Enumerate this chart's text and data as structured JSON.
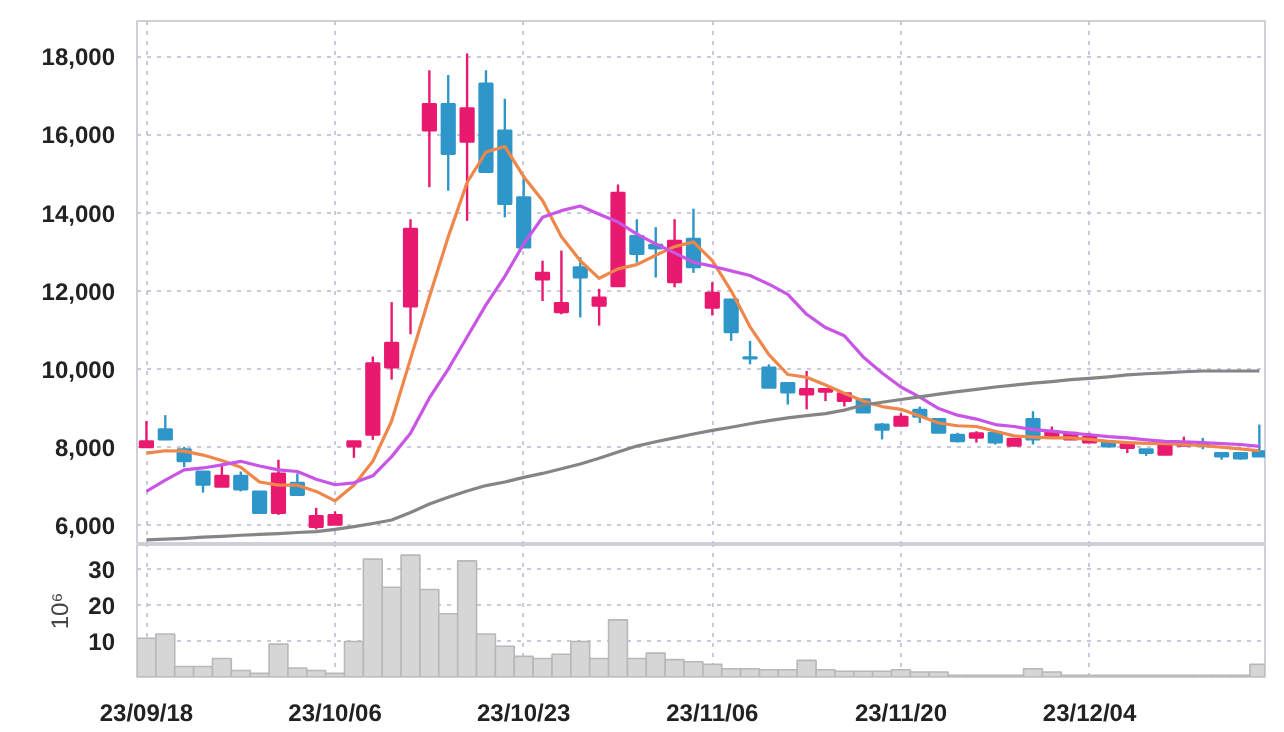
{
  "chart_data": [
    {
      "type": "candlestick",
      "categories": [
        null,
        null,
        null,
        null,
        null,
        null,
        null,
        null,
        null,
        null,
        null,
        null,
        null,
        null,
        null,
        null,
        null,
        null,
        null,
        null,
        null,
        null,
        null,
        null,
        null,
        null,
        null,
        null,
        null,
        null,
        null,
        null,
        null,
        null,
        null,
        null,
        null,
        null,
        null,
        null,
        null,
        null,
        null,
        null,
        null,
        null,
        null,
        null,
        null,
        null,
        null,
        null,
        null,
        null,
        null,
        null,
        null,
        null,
        null,
        null
      ],
      "ohlc": [
        [
          8000,
          8670,
          8000,
          8150
        ],
        [
          8460,
          8820,
          8180,
          8200
        ],
        [
          7950,
          8010,
          7490,
          7640
        ],
        [
          7380,
          7380,
          6840,
          7040
        ],
        [
          6990,
          7550,
          6990,
          7270
        ],
        [
          7270,
          7380,
          6870,
          6920
        ],
        [
          6870,
          6870,
          6320,
          6320
        ],
        [
          6320,
          7680,
          6270,
          7330
        ],
        [
          7090,
          7330,
          6780,
          6780
        ],
        [
          5960,
          6450,
          5900,
          6240
        ],
        [
          6020,
          6360,
          6020,
          6270
        ],
        [
          8020,
          8150,
          7730,
          8150
        ],
        [
          8320,
          10320,
          8190,
          10150
        ],
        [
          10040,
          11710,
          9730,
          10670
        ],
        [
          11600,
          13830,
          10890,
          13590
        ],
        [
          16100,
          17640,
          14650,
          16780
        ],
        [
          16780,
          17520,
          14560,
          15500
        ],
        [
          15810,
          18070,
          13790,
          16670
        ],
        [
          17300,
          17640,
          15040,
          15040
        ],
        [
          16100,
          16910,
          13880,
          14220
        ],
        [
          14390,
          14960,
          13100,
          13110
        ],
        [
          12290,
          12770,
          11740,
          12460
        ],
        [
          11450,
          13030,
          11400,
          11690
        ],
        [
          12600,
          12860,
          11320,
          12340
        ],
        [
          11620,
          12050,
          11110,
          11830
        ],
        [
          12120,
          14720,
          12120,
          14510
        ],
        [
          13400,
          13830,
          12720,
          12940
        ],
        [
          13180,
          13630,
          12340,
          13080
        ],
        [
          12220,
          13830,
          12090,
          13280
        ],
        [
          13330,
          14100,
          12460,
          12600
        ],
        [
          11570,
          12220,
          11370,
          11950
        ],
        [
          11780,
          11780,
          10720,
          10940
        ],
        [
          10300,
          10720,
          10120,
          10270
        ],
        [
          10040,
          10120,
          9520,
          9520
        ],
        [
          9640,
          9640,
          9090,
          9400
        ],
        [
          9350,
          9950,
          8970,
          9490
        ],
        [
          9420,
          9490,
          9180,
          9490
        ],
        [
          9180,
          9380,
          9040,
          9380
        ],
        [
          9230,
          9230,
          8890,
          8890
        ],
        [
          8580,
          8620,
          8200,
          8450
        ],
        [
          8550,
          8870,
          8530,
          8780
        ],
        [
          8960,
          9040,
          8620,
          8780
        ],
        [
          8720,
          8720,
          8370,
          8370
        ],
        [
          8320,
          8370,
          8120,
          8150
        ],
        [
          8240,
          8410,
          8120,
          8360
        ],
        [
          8370,
          8370,
          8070,
          8120
        ],
        [
          8040,
          8220,
          8040,
          8220
        ],
        [
          8720,
          8920,
          8070,
          8200
        ],
        [
          8270,
          8530,
          8270,
          8410
        ],
        [
          8200,
          8370,
          8200,
          8370
        ],
        [
          8120,
          8370,
          8120,
          8270
        ],
        [
          8150,
          8150,
          8020,
          8020
        ],
        [
          7980,
          8100,
          7850,
          8100
        ],
        [
          7950,
          7950,
          7780,
          7850
        ],
        [
          7810,
          8070,
          7810,
          8070
        ],
        [
          8040,
          8270,
          8040,
          8120
        ],
        [
          8060,
          8240,
          7950,
          8040
        ],
        [
          7850,
          7850,
          7680,
          7760
        ],
        [
          7850,
          7850,
          7680,
          7710
        ],
        [
          7900,
          8580,
          7760,
          7760
        ]
      ],
      "colors": [
        "#e8196e",
        "#2e96c8",
        "#2e96c8",
        "#2e96c8",
        "#e8196e",
        "#2e96c8",
        "#2e96c8",
        "#e8196e",
        "#2e96c8",
        "#e8196e",
        "#e8196e",
        "#e8196e",
        "#e8196e",
        "#e8196e",
        "#e8196e",
        "#e8196e",
        "#2e96c8",
        "#e8196e",
        "#2e96c8",
        "#2e96c8",
        "#2e96c8",
        "#e8196e",
        "#e8196e",
        "#2e96c8",
        "#e8196e",
        "#e8196e",
        "#2e96c8",
        "#2e96c8",
        "#e8196e",
        "#2e96c8",
        "#e8196e",
        "#2e96c8",
        "#2e96c8",
        "#2e96c8",
        "#2e96c8",
        "#e8196e",
        "#e8196e",
        "#e8196e",
        "#2e96c8",
        "#2e96c8",
        "#e8196e",
        "#2e96c8",
        "#2e96c8",
        "#2e96c8",
        "#e8196e",
        "#2e96c8",
        "#e8196e",
        "#2e96c8",
        "#e8196e",
        "#e8196e",
        "#e8196e",
        "#2e96c8",
        "#e8196e",
        "#2e96c8",
        "#e8196e",
        "#e8196e",
        "#2e96c8",
        "#2e96c8",
        "#2e96c8",
        "#2e96c8"
      ],
      "series": [
        {
          "type": "line",
          "color": "#f0874a",
          "values": [
            7850,
            7910,
            7900,
            7800,
            7660,
            7490,
            7110,
            7030,
            7030,
            6870,
            6630,
            7030,
            7640,
            8670,
            10260,
            11850,
            13380,
            14770,
            15550,
            15690,
            14920,
            14310,
            13380,
            12770,
            12320,
            12560,
            12670,
            12910,
            13130,
            13250,
            12770,
            12000,
            11080,
            10370,
            9860,
            9790,
            9590,
            9380,
            9180,
            9040,
            8970,
            8800,
            8620,
            8550,
            8530,
            8410,
            8290,
            8260,
            8240,
            8240,
            8200,
            8150,
            8120,
            8100,
            8090,
            8070,
            8040,
            8000,
            7960,
            7910
          ]
        },
        {
          "type": "line",
          "color": "#c855e6",
          "values": [
            6870,
            7160,
            7420,
            7470,
            7550,
            7640,
            7520,
            7420,
            7380,
            7180,
            7040,
            7090,
            7270,
            7760,
            8360,
            9260,
            10000,
            10820,
            11640,
            12370,
            13200,
            13880,
            14050,
            14170,
            13960,
            13760,
            13450,
            13200,
            12970,
            12730,
            12630,
            12510,
            12390,
            12170,
            11910,
            11400,
            11060,
            10850,
            10310,
            9900,
            9540,
            9280,
            8990,
            8820,
            8720,
            8580,
            8530,
            8450,
            8410,
            8360,
            8320,
            8270,
            8240,
            8190,
            8150,
            8140,
            8120,
            8090,
            8070,
            8020
          ]
        },
        {
          "type": "line",
          "color": "#858585",
          "values": [
            5630,
            5650,
            5670,
            5700,
            5720,
            5750,
            5770,
            5790,
            5820,
            5840,
            5900,
            5970,
            6050,
            6140,
            6330,
            6550,
            6720,
            6880,
            7020,
            7110,
            7230,
            7330,
            7450,
            7570,
            7720,
            7880,
            8030,
            8140,
            8240,
            8340,
            8430,
            8510,
            8600,
            8680,
            8750,
            8810,
            8860,
            8950,
            9080,
            9150,
            9220,
            9290,
            9360,
            9420,
            9480,
            9540,
            9590,
            9640,
            9680,
            9730,
            9760,
            9800,
            9850,
            9880,
            9900,
            9930,
            9950,
            9950,
            9950,
            9950
          ]
        }
      ],
      "ylim": [
        5500,
        18900
      ],
      "yticks": [
        {
          "value": 6000,
          "label": "6,000"
        },
        {
          "value": 8000,
          "label": "8,000"
        },
        {
          "value": 10000,
          "label": "10,000"
        },
        {
          "value": 12000,
          "label": "12,000"
        },
        {
          "value": 14000,
          "label": "14,000"
        },
        {
          "value": 16000,
          "label": "16,000"
        },
        {
          "value": 18000,
          "label": "18,000"
        }
      ],
      "grid": true,
      "tick_labels": "y"
    },
    {
      "type": "bar",
      "categories": [
        "23/09/18",
        null,
        null,
        null,
        null,
        null,
        null,
        null,
        null,
        null,
        "23/10/06",
        null,
        null,
        null,
        null,
        null,
        null,
        null,
        null,
        null,
        "23/10/23",
        null,
        null,
        null,
        null,
        null,
        null,
        null,
        null,
        null,
        "23/11/06",
        null,
        null,
        null,
        null,
        null,
        null,
        null,
        null,
        null,
        "23/11/20",
        null,
        null,
        null,
        null,
        null,
        null,
        null,
        null,
        null,
        "23/12/04",
        null,
        null,
        null,
        null,
        null,
        null,
        null,
        null,
        null
      ],
      "values": [
        10.7,
        11.9,
        2.9,
        2.9,
        5.1,
        1.8,
        1.0,
        9.1,
        2.5,
        1.8,
        1.0,
        9.8,
        32.6,
        24.8,
        33.7,
        24.2,
        17.5,
        32.1,
        11.9,
        8.5,
        5.7,
        5.1,
        6.3,
        9.8,
        5.1,
        15.8,
        5.1,
        6.6,
        4.8,
        4.2,
        3.5,
        2.3,
        2.3,
        2.0,
        2.0,
        4.6,
        2.0,
        1.6,
        1.6,
        1.6,
        2.0,
        1.4,
        1.4,
        0.5,
        0.5,
        0.5,
        0.5,
        2.3,
        1.4,
        0.5,
        0.5,
        0.5,
        0.5,
        0.5,
        0.5,
        0.5,
        0.5,
        0.5,
        0.5,
        3.5
      ],
      "color": "#d6d6d6",
      "ylabel": "10⁶",
      "ylim": [
        0,
        36.5
      ],
      "yticks": [
        10,
        20,
        30
      ],
      "grid": true
    }
  ]
}
